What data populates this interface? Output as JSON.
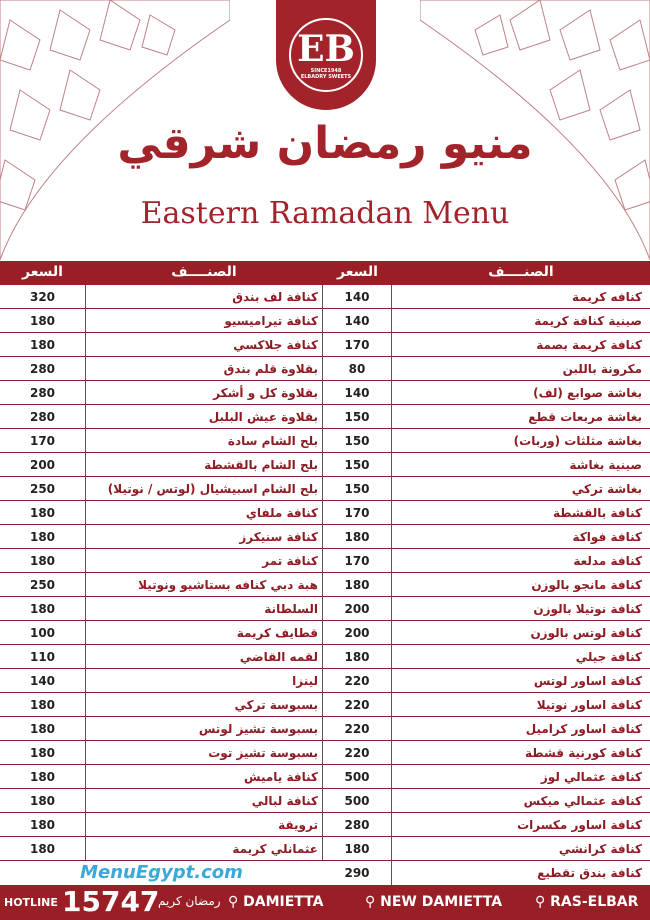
{
  "brand": {
    "logo_text": "ELBADRY SWEETS",
    "logo_since": "SINCE1948",
    "logo_mark": "EB"
  },
  "title_ar": "منيو رمضان شرقي",
  "title_en": "Eastern Ramadan Menu",
  "headers": {
    "item": "الصنــــف",
    "price": "السعر"
  },
  "watermark": "MenuEgypt.com",
  "right_items": [
    {
      "name": "كنافه كريمة",
      "price": "140"
    },
    {
      "name": "صينية كنافة كريمة",
      "price": "140"
    },
    {
      "name": "كنافة كريمة بصمة",
      "price": "170"
    },
    {
      "name": "مكرونة باللبن",
      "price": "80"
    },
    {
      "name": "بغاشة صوابع (لف)",
      "price": "140"
    },
    {
      "name": "بغاشة مربعات قطع",
      "price": "150"
    },
    {
      "name": "بغاشة مثلثات (وربات)",
      "price": "150"
    },
    {
      "name": "صينية بغاشة",
      "price": "150"
    },
    {
      "name": "بغاشة تركي",
      "price": "150"
    },
    {
      "name": "كنافة بالقشطة",
      "price": "170"
    },
    {
      "name": "كنافة فواكة",
      "price": "180"
    },
    {
      "name": "كنافة مدلعة",
      "price": "170"
    },
    {
      "name": "كنافة مانجو بالوزن",
      "price": "180"
    },
    {
      "name": "كنافة نوتيلا بالوزن",
      "price": "200"
    },
    {
      "name": "كنافة لوتس بالوزن",
      "price": "200"
    },
    {
      "name": "كنافة جيلي",
      "price": "180"
    },
    {
      "name": "كنافة اساور لوتس",
      "price": "220"
    },
    {
      "name": "كنافة اساور نوتيلا",
      "price": "220"
    },
    {
      "name": "كنافة اساور كراميل",
      "price": "220"
    },
    {
      "name": "كنافة كورنية قشطة",
      "price": "220"
    },
    {
      "name": "كنافة عثمالي لوز",
      "price": "500"
    },
    {
      "name": "كنافة عثمالي ميكس",
      "price": "500"
    },
    {
      "name": "كنافة اساور مكسرات",
      "price": "280"
    },
    {
      "name": "كنافة كرانشي",
      "price": "180"
    },
    {
      "name": "كنافة بندق تقطيع",
      "price": "290"
    }
  ],
  "left_items": [
    {
      "name": "كنافة لف بندق",
      "price": "320"
    },
    {
      "name": "كنافة تيراميسيو",
      "price": "180"
    },
    {
      "name": "كنافة جلاكسي",
      "price": "180"
    },
    {
      "name": "بقلاوة قلم بندق",
      "price": "280"
    },
    {
      "name": "بقلاوة كل و أشكر",
      "price": "280"
    },
    {
      "name": "بقلاوة عيش البلبل",
      "price": "280"
    },
    {
      "name": "بلح الشام سادة",
      "price": "170"
    },
    {
      "name": "بلح الشام بالقشطة",
      "price": "200"
    },
    {
      "name": "بلح الشام اسبيشيال (لوتس / نوتيلا)",
      "price": "250"
    },
    {
      "name": "كنافة ملفاي",
      "price": "180"
    },
    {
      "name": "كنافة سنيكرز",
      "price": "180"
    },
    {
      "name": "كنافة تمر",
      "price": "180"
    },
    {
      "name": "هبة دبي كنافه بستاشيو ونوتيلا",
      "price": "250"
    },
    {
      "name": "السلطانة",
      "price": "180"
    },
    {
      "name": "قطايف كريمة",
      "price": "100"
    },
    {
      "name": "لقمه القاضي",
      "price": "110"
    },
    {
      "name": "لينزا",
      "price": "140"
    },
    {
      "name": "بسبوسة تركي",
      "price": "180"
    },
    {
      "name": "بسبوسة تشيز لوتس",
      "price": "180"
    },
    {
      "name": "بسبوسة تشيز توت",
      "price": "180"
    },
    {
      "name": "كنافة ياميش",
      "price": "180"
    },
    {
      "name": "كنافة لبالي",
      "price": "180"
    },
    {
      "name": "ترويقة",
      "price": "180"
    },
    {
      "name": "عثمانلي كريمة",
      "price": "180"
    }
  ],
  "footer": {
    "hotline_label": "HOTLINE",
    "hotline": "15747",
    "ramadan": "رمضان كريم",
    "locations": [
      "DAMIETTA",
      "NEW DAMIETTA",
      "RAS-ELBAR"
    ]
  },
  "colors": {
    "brand": "#9a1e26"
  }
}
